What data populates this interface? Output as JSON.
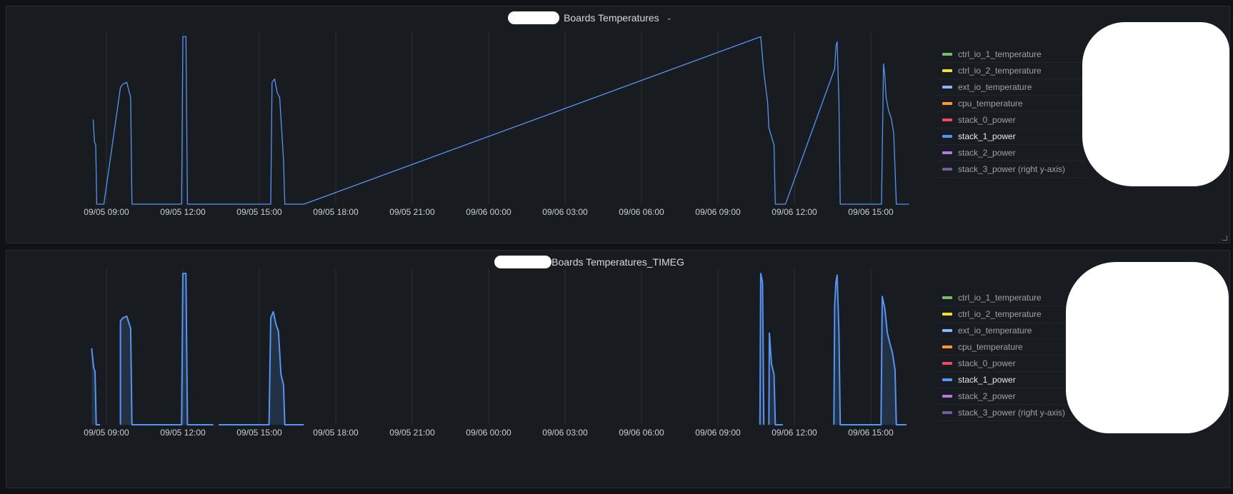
{
  "panels": [
    {
      "title": "Boards Temperatures",
      "has_dropdown": true,
      "legend": [
        {
          "label": "ctrl_io_1_temperature",
          "color": "#73bf69"
        },
        {
          "label": "ctrl_io_2_temperature",
          "color": "#fade2a"
        },
        {
          "label": "ext_io_temperature",
          "color": "#8ab8ff"
        },
        {
          "label": "cpu_temperature",
          "color": "#ff9830"
        },
        {
          "label": "stack_0_power",
          "color": "#f2495c"
        },
        {
          "label": "stack_1_power",
          "color": "#5794f2",
          "active": true
        },
        {
          "label": "stack_2_power",
          "color": "#b877d9"
        },
        {
          "label": "stack_3_power (right y-axis)",
          "color": "#705da0"
        }
      ]
    },
    {
      "title": "Boards Temperatures_TIMEG",
      "has_dropdown": false,
      "legend": [
        {
          "label": "ctrl_io_1_temperature",
          "color": "#73bf69"
        },
        {
          "label": "ctrl_io_2_temperature",
          "color": "#fade2a"
        },
        {
          "label": "ext_io_temperature",
          "color": "#8ab8ff"
        },
        {
          "label": "cpu_temperature",
          "color": "#ff9830"
        },
        {
          "label": "stack_0_power",
          "color": "#f2495c"
        },
        {
          "label": "stack_1_power",
          "color": "#5794f2",
          "active": true
        },
        {
          "label": "stack_2_power",
          "color": "#b877d9"
        },
        {
          "label": "stack_3_power (right y-axis)",
          "color": "#705da0"
        }
      ]
    }
  ],
  "chart_data": [
    {
      "type": "line",
      "title": "Boards Temperatures",
      "x_ticks": [
        "09/05 09:00",
        "09/05 12:00",
        "09/05 15:00",
        "09/05 18:00",
        "09/05 21:00",
        "09/06 00:00",
        "09/06 03:00",
        "09/06 06:00",
        "09/06 09:00",
        "09/06 12:00",
        "09/06 15:00"
      ],
      "xlim_hours": [
        -0.8,
        31.5
      ],
      "ylim": [
        0,
        1
      ],
      "grid": true,
      "legend_position": "right",
      "series": [
        {
          "name": "stack_1_power",
          "color": "#5794f2",
          "fill": false,
          "segments": [
            [
              [
                -0.52,
                0.5
              ],
              [
                -0.47,
                0.37
              ],
              [
                -0.42,
                0.35
              ],
              [
                -0.38,
                0
              ],
              [
                -0.1,
                0
              ],
              [
                0.55,
                0.69
              ],
              [
                0.65,
                0.71
              ],
              [
                0.8,
                0.72
              ],
              [
                0.95,
                0.63
              ],
              [
                1.0,
                0
              ],
              [
                2.95,
                0
              ],
              [
                3.0,
                0.99
              ],
              [
                3.12,
                0.99
              ],
              [
                3.18,
                0
              ],
              [
                6.45,
                0
              ],
              [
                6.5,
                0.72
              ],
              [
                6.6,
                0.74
              ],
              [
                6.7,
                0.66
              ],
              [
                6.8,
                0.63
              ],
              [
                6.95,
                0.26
              ],
              [
                7.0,
                0
              ],
              [
                7.75,
                0
              ],
              [
                25.68,
                0.99
              ],
              [
                25.8,
                0.78
              ],
              [
                25.95,
                0.6
              ],
              [
                26.0,
                0.45
              ],
              [
                26.1,
                0.4
              ],
              [
                26.2,
                0.35
              ],
              [
                26.25,
                0
              ],
              [
                26.65,
                0
              ],
              [
                28.58,
                0.8
              ],
              [
                28.63,
                0.93
              ],
              [
                28.68,
                0.96
              ],
              [
                28.75,
                0.6
              ],
              [
                28.8,
                0
              ],
              [
                30.42,
                0
              ],
              [
                30.5,
                0.83
              ],
              [
                30.55,
                0.76
              ],
              [
                30.6,
                0.63
              ],
              [
                30.7,
                0.55
              ],
              [
                30.8,
                0.51
              ],
              [
                30.9,
                0.42
              ],
              [
                31.0,
                0
              ],
              [
                31.5,
                0
              ]
            ]
          ]
        }
      ]
    },
    {
      "type": "area",
      "title": "Boards Temperatures_TIMEG",
      "x_ticks": [
        "09/05 09:00",
        "09/05 12:00",
        "09/05 15:00",
        "09/05 18:00",
        "09/05 21:00",
        "09/06 00:00",
        "09/06 03:00",
        "09/06 06:00",
        "09/06 09:00",
        "09/06 12:00",
        "09/06 15:00"
      ],
      "xlim_hours": [
        -0.8,
        31.5
      ],
      "ylim": [
        0,
        1
      ],
      "grid": true,
      "legend_position": "right",
      "series": [
        {
          "name": "stack_1_power",
          "color": "#5794f2",
          "fill": true,
          "segments": [
            [
              [
                -0.58,
                0.5
              ],
              [
                -0.5,
                0.37
              ],
              [
                -0.45,
                0.35
              ],
              [
                -0.4,
                0
              ],
              [
                -0.25,
                0
              ],
              [
                -0.25,
                0
              ]
            ],
            [
              [
                0.55,
                0
              ],
              [
                0.55,
                0.68
              ],
              [
                0.65,
                0.7
              ],
              [
                0.8,
                0.71
              ],
              [
                0.95,
                0.63
              ],
              [
                1.0,
                0
              ],
              [
                2.95,
                0
              ],
              [
                3.0,
                0.99
              ],
              [
                3.12,
                0.99
              ],
              [
                3.18,
                0
              ],
              [
                4.2,
                0
              ]
            ],
            [
              [
                4.4,
                0
              ],
              [
                6.38,
                0
              ],
              [
                6.45,
                0.7
              ],
              [
                6.55,
                0.74
              ],
              [
                6.65,
                0.66
              ],
              [
                6.75,
                0.61
              ],
              [
                6.85,
                0.33
              ],
              [
                6.95,
                0.26
              ],
              [
                7.0,
                0
              ],
              [
                7.75,
                0
              ]
            ],
            [
              [
                25.65,
                0
              ],
              [
                25.68,
                0.99
              ],
              [
                25.75,
                0.93
              ],
              [
                25.8,
                0
              ]
            ],
            [
              [
                26.0,
                0
              ],
              [
                26.02,
                0.6
              ],
              [
                26.1,
                0.4
              ],
              [
                26.2,
                0.33
              ],
              [
                26.25,
                0
              ],
              [
                26.55,
                0
              ]
            ],
            [
              [
                28.55,
                0
              ],
              [
                28.58,
                0.78
              ],
              [
                28.63,
                0.93
              ],
              [
                28.68,
                0.98
              ],
              [
                28.75,
                0.6
              ],
              [
                28.8,
                0
              ],
              [
                30.4,
                0
              ],
              [
                30.45,
                0.84
              ],
              [
                30.55,
                0.76
              ],
              [
                30.65,
                0.6
              ],
              [
                30.75,
                0.53
              ],
              [
                30.85,
                0.47
              ],
              [
                30.95,
                0.36
              ],
              [
                31.0,
                0
              ],
              [
                31.4,
                0
              ]
            ]
          ]
        }
      ]
    }
  ]
}
